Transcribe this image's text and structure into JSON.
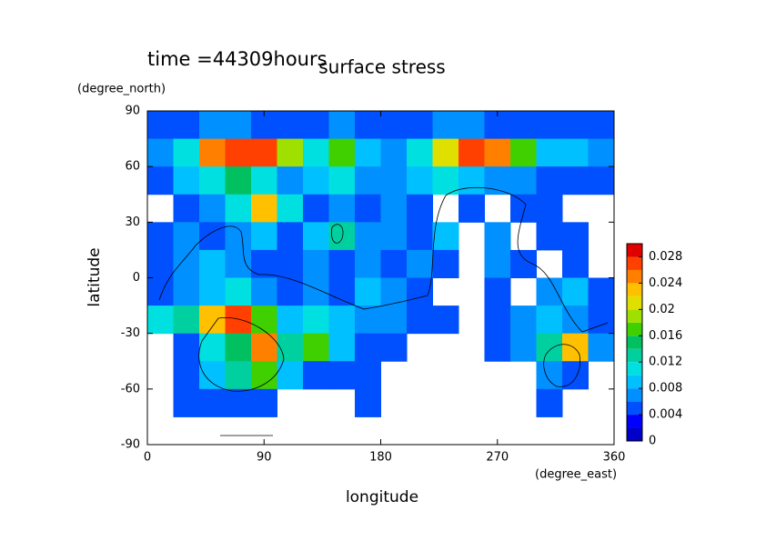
{
  "chart_data": {
    "type": "heatmap",
    "title": "surface stress",
    "subtitle": "time =44309hours",
    "xlabel": "longitude",
    "ylabel": "latitude",
    "xunit": "(degree_east)",
    "yunit": "(degree_north)",
    "x": [
      10,
      30,
      50,
      70,
      90,
      110,
      130,
      150,
      170,
      190,
      210,
      230,
      250,
      270,
      290,
      310,
      330,
      350
    ],
    "y": [
      82.5,
      67.5,
      52.5,
      37.5,
      22.5,
      7.5,
      -7.5,
      -22.5,
      -37.5,
      -52.5,
      -67.5,
      -82.5
    ],
    "values": [
      [
        0.005,
        0.005,
        0.006,
        0.006,
        0.005,
        0.005,
        0.005,
        0.006,
        0.005,
        0.005,
        0.005,
        0.006,
        0.006,
        0.005,
        0.005,
        0.005,
        0.005,
        0.005
      ],
      [
        0.006,
        0.01,
        0.024,
        0.026,
        0.026,
        0.018,
        0.01,
        0.016,
        0.008,
        0.006,
        0.01,
        0.02,
        0.026,
        0.024,
        0.016,
        0.008,
        0.008,
        0.006
      ],
      [
        0.004,
        0.008,
        0.01,
        0.014,
        0.01,
        0.006,
        0.008,
        0.01,
        0.006,
        0.006,
        0.008,
        0.01,
        0.008,
        0.006,
        0.006,
        0.004,
        0.004,
        0.004
      ],
      [
        null,
        0.004,
        0.006,
        0.01,
        0.022,
        0.01,
        0.004,
        0.006,
        0.004,
        0.006,
        0.004,
        null,
        0.004,
        null,
        0.004,
        0.004,
        null,
        null
      ],
      [
        0.004,
        0.006,
        0.004,
        0.006,
        0.008,
        0.004,
        0.008,
        0.012,
        0.006,
        0.006,
        0.004,
        0.008,
        null,
        0.006,
        null,
        0.004,
        0.004,
        null
      ],
      [
        0.004,
        0.006,
        0.008,
        0.006,
        0.004,
        0.004,
        0.006,
        0.004,
        0.006,
        0.004,
        0.006,
        0.004,
        null,
        0.006,
        0.004,
        null,
        0.004,
        null
      ],
      [
        0.004,
        0.006,
        0.008,
        0.01,
        0.006,
        0.004,
        0.006,
        0.004,
        0.008,
        0.006,
        0.004,
        null,
        null,
        0.004,
        null,
        0.006,
        0.008,
        0.004
      ],
      [
        0.01,
        0.012,
        0.022,
        0.026,
        0.016,
        0.008,
        0.01,
        0.008,
        0.006,
        0.006,
        0.004,
        0.004,
        null,
        0.004,
        0.006,
        0.008,
        0.006,
        0.004
      ],
      [
        null,
        0.004,
        0.01,
        0.014,
        0.024,
        0.012,
        0.016,
        0.008,
        0.004,
        0.004,
        null,
        null,
        null,
        0.004,
        0.006,
        0.012,
        0.022,
        0.006
      ],
      [
        null,
        0.004,
        0.008,
        0.012,
        0.016,
        0.008,
        0.004,
        0.004,
        0.004,
        null,
        null,
        null,
        null,
        null,
        null,
        0.006,
        0.004,
        null
      ],
      [
        null,
        0.004,
        0.004,
        0.004,
        0.004,
        null,
        null,
        null,
        0.004,
        null,
        null,
        null,
        null,
        null,
        null,
        0.004,
        null,
        null
      ],
      [
        null,
        null,
        null,
        null,
        null,
        null,
        null,
        null,
        null,
        null,
        null,
        null,
        null,
        null,
        null,
        null,
        null,
        null
      ]
    ],
    "xlim": [
      0,
      360
    ],
    "ylim": [
      -90,
      90
    ],
    "xticks": [
      0,
      90,
      180,
      270,
      360
    ],
    "yticks": [
      -90,
      -60,
      -30,
      0,
      30,
      60,
      90
    ],
    "colorbar": {
      "lim": [
        0,
        0.03
      ],
      "step": 0.002,
      "ticks": [
        0,
        0.004,
        0.008,
        0.012,
        0.016,
        0.02,
        0.024,
        0.028
      ],
      "colors": [
        "#0000c8",
        "#0000ff",
        "#0050ff",
        "#0090ff",
        "#00c0ff",
        "#00e0e0",
        "#00d0a0",
        "#00c060",
        "#40d000",
        "#a0e000",
        "#e0e000",
        "#ffc000",
        "#ff8000",
        "#ff4000",
        "#e00000"
      ]
    }
  }
}
